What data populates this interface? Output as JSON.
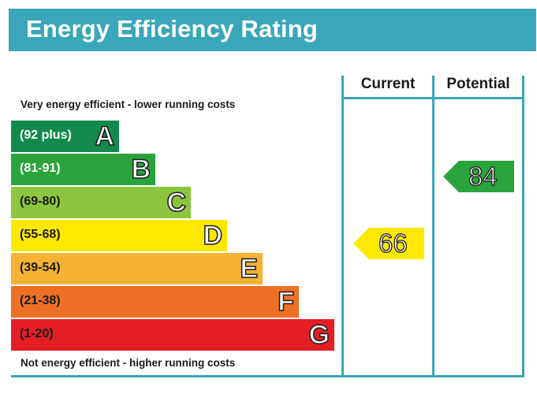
{
  "title": "Energy Efficiency Rating",
  "captions": {
    "top": "Very energy efficient - lower running costs",
    "bottom": "Not energy efficient - higher running costs"
  },
  "columns": {
    "current": "Current",
    "potential": "Potential"
  },
  "colors": {
    "frame": "#3aa6b9",
    "A": "#138a4b",
    "B": "#2ba33c",
    "C": "#8cc63f",
    "D": "#ffe800",
    "E": "#f6b233",
    "F": "#ee7025",
    "G": "#e31e25"
  },
  "chart_data": {
    "type": "bar",
    "categories": [
      "A",
      "B",
      "C",
      "D",
      "E",
      "F",
      "G"
    ],
    "bands": [
      {
        "letter": "A",
        "range": "(92 plus)",
        "min": 92,
        "max": 100
      },
      {
        "letter": "B",
        "range": "(81-91)",
        "min": 81,
        "max": 91
      },
      {
        "letter": "C",
        "range": "(69-80)",
        "min": 69,
        "max": 80
      },
      {
        "letter": "D",
        "range": "(55-68)",
        "min": 55,
        "max": 68
      },
      {
        "letter": "E",
        "range": "(39-54)",
        "min": 39,
        "max": 54
      },
      {
        "letter": "F",
        "range": "(21-38)",
        "min": 21,
        "max": 38
      },
      {
        "letter": "G",
        "range": "(1-20)",
        "min": 1,
        "max": 20
      }
    ],
    "current": {
      "value": "66",
      "band": "D"
    },
    "potential": {
      "value": "84",
      "band": "B"
    }
  }
}
